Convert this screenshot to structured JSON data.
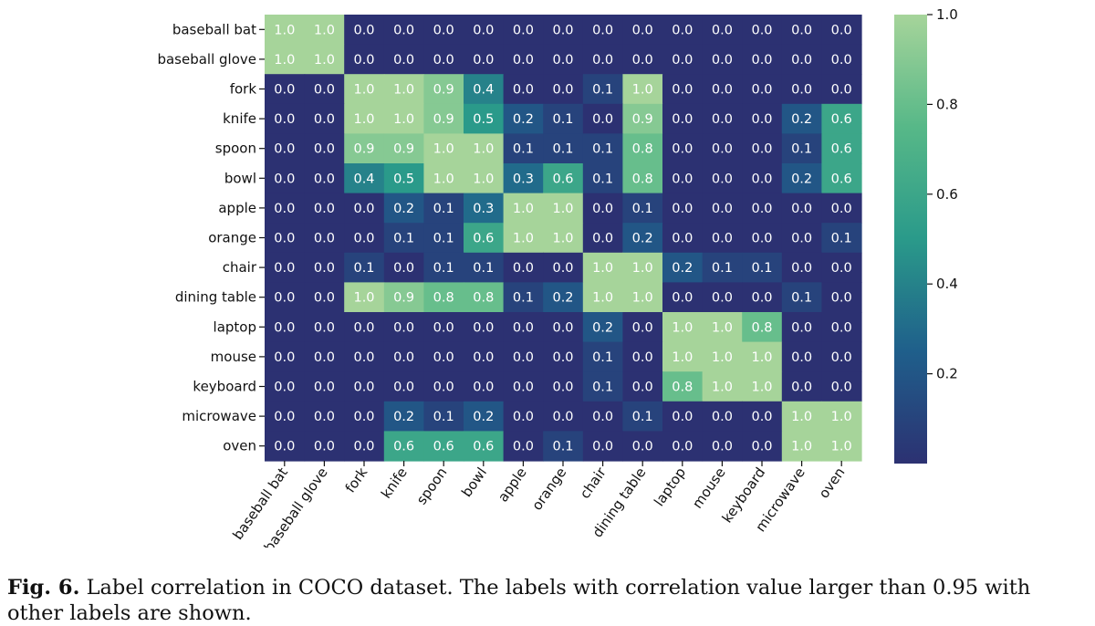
{
  "chart_data": {
    "type": "heatmap",
    "title": "",
    "xlabel": "",
    "ylabel": "",
    "labels": [
      "baseball bat",
      "baseball glove",
      "fork",
      "knife",
      "spoon",
      "bowl",
      "apple",
      "orange",
      "chair",
      "dining table",
      "laptop",
      "mouse",
      "keyboard",
      "microwave",
      "oven"
    ],
    "matrix": [
      [
        1.0,
        1.0,
        0.0,
        0.0,
        0.0,
        0.0,
        0.0,
        0.0,
        0.0,
        0.0,
        0.0,
        0.0,
        0.0,
        0.0,
        0.0
      ],
      [
        1.0,
        1.0,
        0.0,
        0.0,
        0.0,
        0.0,
        0.0,
        0.0,
        0.0,
        0.0,
        0.0,
        0.0,
        0.0,
        0.0,
        0.0
      ],
      [
        0.0,
        0.0,
        1.0,
        1.0,
        0.9,
        0.4,
        0.0,
        0.0,
        0.1,
        1.0,
        0.0,
        0.0,
        0.0,
        0.0,
        0.0
      ],
      [
        0.0,
        0.0,
        1.0,
        1.0,
        0.9,
        0.5,
        0.2,
        0.1,
        0.0,
        0.9,
        0.0,
        0.0,
        0.0,
        0.2,
        0.6
      ],
      [
        0.0,
        0.0,
        0.9,
        0.9,
        1.0,
        1.0,
        0.1,
        0.1,
        0.1,
        0.8,
        0.0,
        0.0,
        0.0,
        0.1,
        0.6
      ],
      [
        0.0,
        0.0,
        0.4,
        0.5,
        1.0,
        1.0,
        0.3,
        0.6,
        0.1,
        0.8,
        0.0,
        0.0,
        0.0,
        0.2,
        0.6
      ],
      [
        0.0,
        0.0,
        0.0,
        0.2,
        0.1,
        0.3,
        1.0,
        1.0,
        0.0,
        0.1,
        0.0,
        0.0,
        0.0,
        0.0,
        0.0
      ],
      [
        0.0,
        0.0,
        0.0,
        0.1,
        0.1,
        0.6,
        1.0,
        1.0,
        0.0,
        0.2,
        0.0,
        0.0,
        0.0,
        0.0,
        0.1
      ],
      [
        0.0,
        0.0,
        0.1,
        0.0,
        0.1,
        0.1,
        0.0,
        0.0,
        1.0,
        1.0,
        0.2,
        0.1,
        0.1,
        0.0,
        0.0
      ],
      [
        0.0,
        0.0,
        1.0,
        0.9,
        0.8,
        0.8,
        0.1,
        0.2,
        1.0,
        1.0,
        0.0,
        0.0,
        0.0,
        0.1,
        0.0
      ],
      [
        0.0,
        0.0,
        0.0,
        0.0,
        0.0,
        0.0,
        0.0,
        0.0,
        0.2,
        0.0,
        1.0,
        1.0,
        0.8,
        0.0,
        0.0
      ],
      [
        0.0,
        0.0,
        0.0,
        0.0,
        0.0,
        0.0,
        0.0,
        0.0,
        0.1,
        0.0,
        1.0,
        1.0,
        1.0,
        0.0,
        0.0
      ],
      [
        0.0,
        0.0,
        0.0,
        0.0,
        0.0,
        0.0,
        0.0,
        0.0,
        0.1,
        0.0,
        0.8,
        1.0,
        1.0,
        0.0,
        0.0
      ],
      [
        0.0,
        0.0,
        0.0,
        0.2,
        0.1,
        0.2,
        0.0,
        0.0,
        0.0,
        0.1,
        0.0,
        0.0,
        0.0,
        1.0,
        1.0
      ],
      [
        0.0,
        0.0,
        0.0,
        0.6,
        0.6,
        0.6,
        0.0,
        0.1,
        0.0,
        0.0,
        0.0,
        0.0,
        0.0,
        1.0,
        1.0
      ]
    ],
    "value_format": "one decimal",
    "colorbar": {
      "ticks": [
        0.2,
        0.4,
        0.6,
        0.8,
        1.0
      ],
      "tick_labels": [
        "0.2",
        "0.4",
        "0.6",
        "0.8",
        "1.0"
      ],
      "range": [
        0.0,
        1.0
      ]
    },
    "colormap": [
      "#2c3172",
      "#1f5f8b",
      "#2a9a8a",
      "#57b888",
      "#a6d49a"
    ]
  },
  "caption": {
    "label": "Fig. 6.",
    "text": " Label correlation in COCO dataset. The labels with correlation value larger than 0.95 with other labels are shown."
  }
}
